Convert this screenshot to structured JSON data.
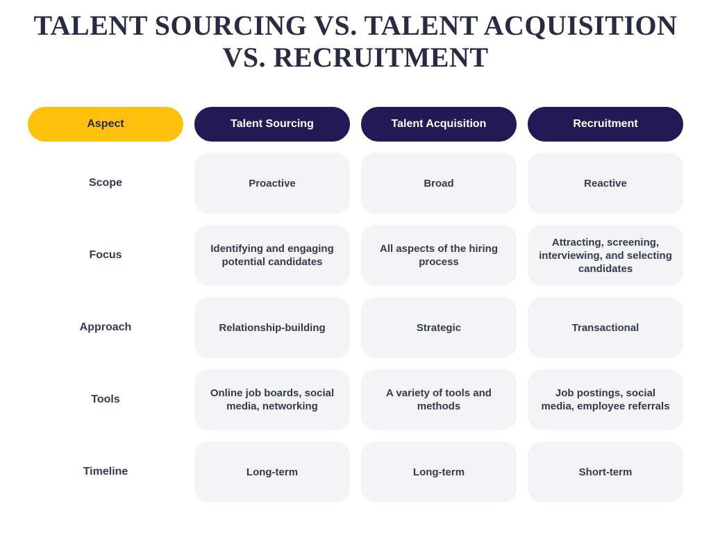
{
  "title": {
    "line1": "TALENT SOURCING VS. TALENT ACQUISITION",
    "line2": "VS. RECRUITMENT"
  },
  "colors": {
    "accent_yellow": "#FFC10E",
    "navy": "#211A54",
    "title_text": "#272C44",
    "cell_background": "#F4F4F6",
    "body_text": "#323A52",
    "page_background": "#FFFFFF"
  },
  "table": {
    "columns": [
      "Aspect",
      "Talent Sourcing",
      "Talent Acquisition",
      "Recruitment"
    ],
    "rows": [
      {
        "aspect": "Scope",
        "cells": [
          "Proactive",
          "Broad",
          "Reactive"
        ]
      },
      {
        "aspect": "Focus",
        "cells": [
          "Identifying and engaging potential candidates",
          "All aspects of the hiring process",
          "Attracting, screening, interviewing, and selecting candidates"
        ]
      },
      {
        "aspect": "Approach",
        "cells": [
          "Relationship-building",
          "Strategic",
          "Transactional"
        ]
      },
      {
        "aspect": "Tools",
        "cells": [
          "Online job boards, social media, networking",
          "A variety of tools and methods",
          "Job postings, social media, employee referrals"
        ]
      },
      {
        "aspect": "Timeline",
        "cells": [
          "Long-term",
          "Long-term",
          "Short-term"
        ]
      }
    ]
  },
  "chart_data": {
    "type": "table",
    "title": "Talent Sourcing vs. Talent Acquisition vs. Recruitment",
    "columns": [
      "Aspect",
      "Talent Sourcing",
      "Talent Acquisition",
      "Recruitment"
    ],
    "rows": [
      [
        "Scope",
        "Proactive",
        "Broad",
        "Reactive"
      ],
      [
        "Focus",
        "Identifying and engaging potential candidates",
        "All aspects of the hiring process",
        "Attracting, screening, interviewing, and selecting candidates"
      ],
      [
        "Approach",
        "Relationship-building",
        "Strategic",
        "Transactional"
      ],
      [
        "Tools",
        "Online job boards, social media, networking",
        "A variety of tools and methods",
        "Job postings, social media, employee referrals"
      ],
      [
        "Timeline",
        "Long-term",
        "Long-term",
        "Short-term"
      ]
    ],
    "layout": {
      "header_style": "pill",
      "aspect_column_color": "#FFC10E",
      "header_color": "#211A54",
      "cell_color": "#F4F4F6"
    }
  }
}
